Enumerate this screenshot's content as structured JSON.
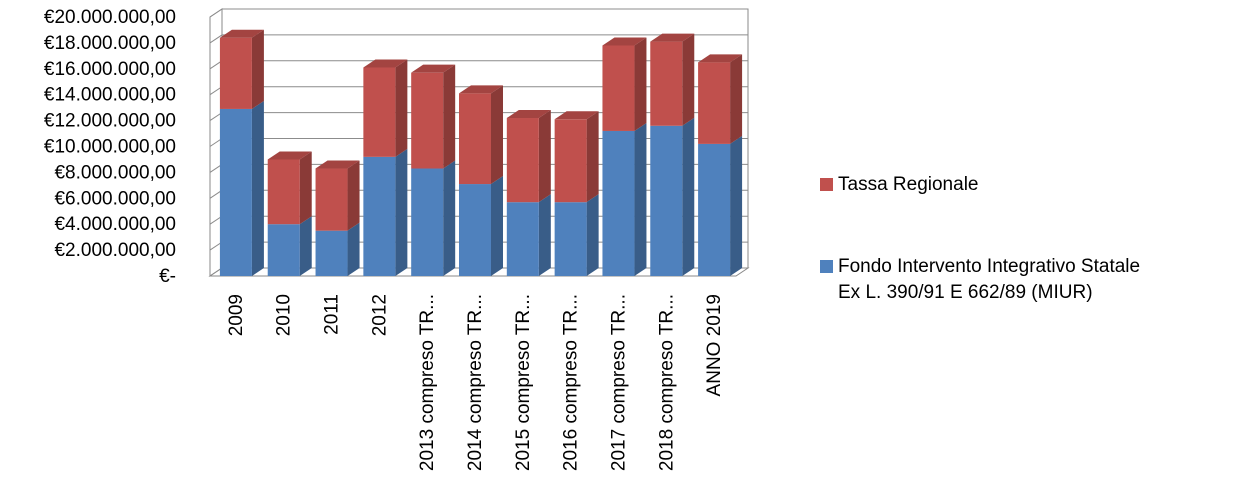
{
  "chart_data": {
    "type": "bar",
    "stacked": true,
    "three_d": true,
    "categories": [
      "2009",
      "2010",
      "2011",
      "2012",
      "2013 compreso TR...",
      "2014 compreso TR...",
      "2015 compreso TR...",
      "2016 compreso TR...",
      "2017 compreso TR...",
      "2018 compreso TR...",
      "ANNO 2019"
    ],
    "series": [
      {
        "name": "Fondo Intervento Integrativo Statale Ex L. 390/91 E 662/89 (MIUR)",
        "legend_lines": [
          "Fondo Intervento Integrativo Statale",
          "Ex L. 390/91 E 662/89 (MIUR)"
        ],
        "color": "#4f81bd",
        "values": [
          12900000,
          4000000,
          3500000,
          9200000,
          8300000,
          7100000,
          5700000,
          5700000,
          11200000,
          11600000,
          10200000
        ]
      },
      {
        "name": "Tassa Regionale",
        "legend_lines": [
          "Tassa Regionale"
        ],
        "color": "#c0504d",
        "values": [
          5500000,
          5000000,
          4800000,
          6900000,
          7400000,
          7000000,
          6500000,
          6400000,
          6600000,
          6500000,
          6300000
        ]
      }
    ],
    "ylim": [
      0,
      20000000
    ],
    "yticks": [
      0,
      2000000,
      4000000,
      6000000,
      8000000,
      10000000,
      12000000,
      14000000,
      16000000,
      18000000,
      20000000
    ],
    "ytick_labels": [
      "€-",
      "€2.000.000,00",
      "€4.000.000,00",
      "€6.000.000,00",
      "€8.000.000,00",
      "€10.000.000,00",
      "€12.000.000,00",
      "€14.000.000,00",
      "€16.000.000,00",
      "€18.000.000,00",
      "€20.000.000,00"
    ],
    "grid": true,
    "legend_position": "right",
    "title": "",
    "xlabel": "",
    "ylabel": ""
  }
}
